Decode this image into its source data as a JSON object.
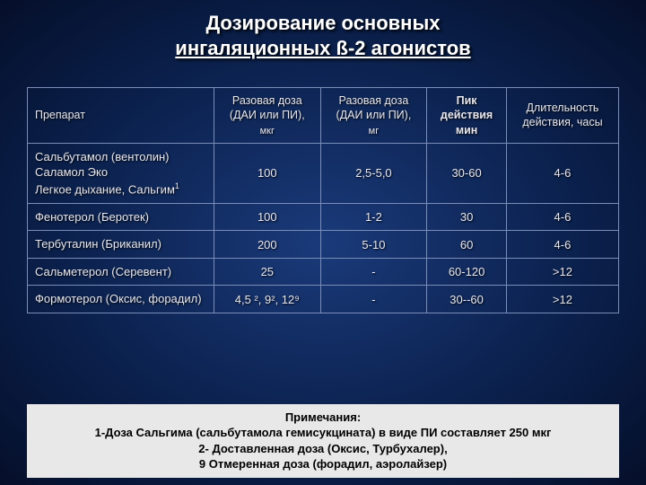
{
  "title_line1": "Дозирование основных",
  "title_line2": "ингаляционных ß-2 агонистов",
  "table": {
    "headers": {
      "drug": "Препарат",
      "dose_mcg_l1": "Разовая доза",
      "dose_mcg_l2": "(ДАИ или ПИ),",
      "dose_mcg_l3": "мкг",
      "dose_mg_l1": "Разовая доза",
      "dose_mg_l2": "(ДАИ или ПИ),",
      "dose_mg_l3": "мг",
      "peak_l1": "Пик",
      "peak_l2": "действия",
      "peak_l3": "мин",
      "dur_l1": "Длительность",
      "dur_l2": "действия, часы"
    },
    "rows": [
      {
        "drug_l1": "Сальбутамол (вентолин)",
        "drug_l2": "Саламол Эко",
        "drug_l3": "Легкое дыхание, Сальгим",
        "drug_sup": "1",
        "dose_mcg": "100",
        "dose_mg": "2,5-5,0",
        "peak": "30-60",
        "dur": "4-6"
      },
      {
        "drug_l1": "Фенотерол (Беротек)",
        "dose_mcg": "100",
        "dose_mg": "1-2",
        "peak": "30",
        "dur": "4-6"
      },
      {
        "drug_l1": "Тербуталин (Бриканил)",
        "dose_mcg": "200",
        "dose_mg": "5-10",
        "peak": "60",
        "dur": "4-6"
      },
      {
        "drug_l1": "Сальметерол (Серевент)",
        "dose_mcg": "25",
        "dose_mg": "-",
        "peak": "60-120",
        "dur": ">12"
      },
      {
        "drug_l1": "Формотерол (Оксис, форадил)",
        "dose_mcg_html": "4,5 ², 9²,  12⁹",
        "dose_mg": "-",
        "peak": "30--60",
        "dur": ">12"
      }
    ]
  },
  "notes": {
    "l1": "Примечания:",
    "l2": "1-Доза Сальгима (сальбутамола гемисукцината) в виде ПИ составляет 250 мкг",
    "l3": "2- Доставленная доза (Оксис, Турбухалер),",
    "l4": "9 Отмеренная доза (форадил, аэролайзер)"
  },
  "colors": {
    "border": "#7a8db8",
    "text": "#e8e8f0",
    "notes_bg": "#e8e8e8",
    "bg_center": "#1a3a7a",
    "bg_edge": "#050f2a"
  }
}
